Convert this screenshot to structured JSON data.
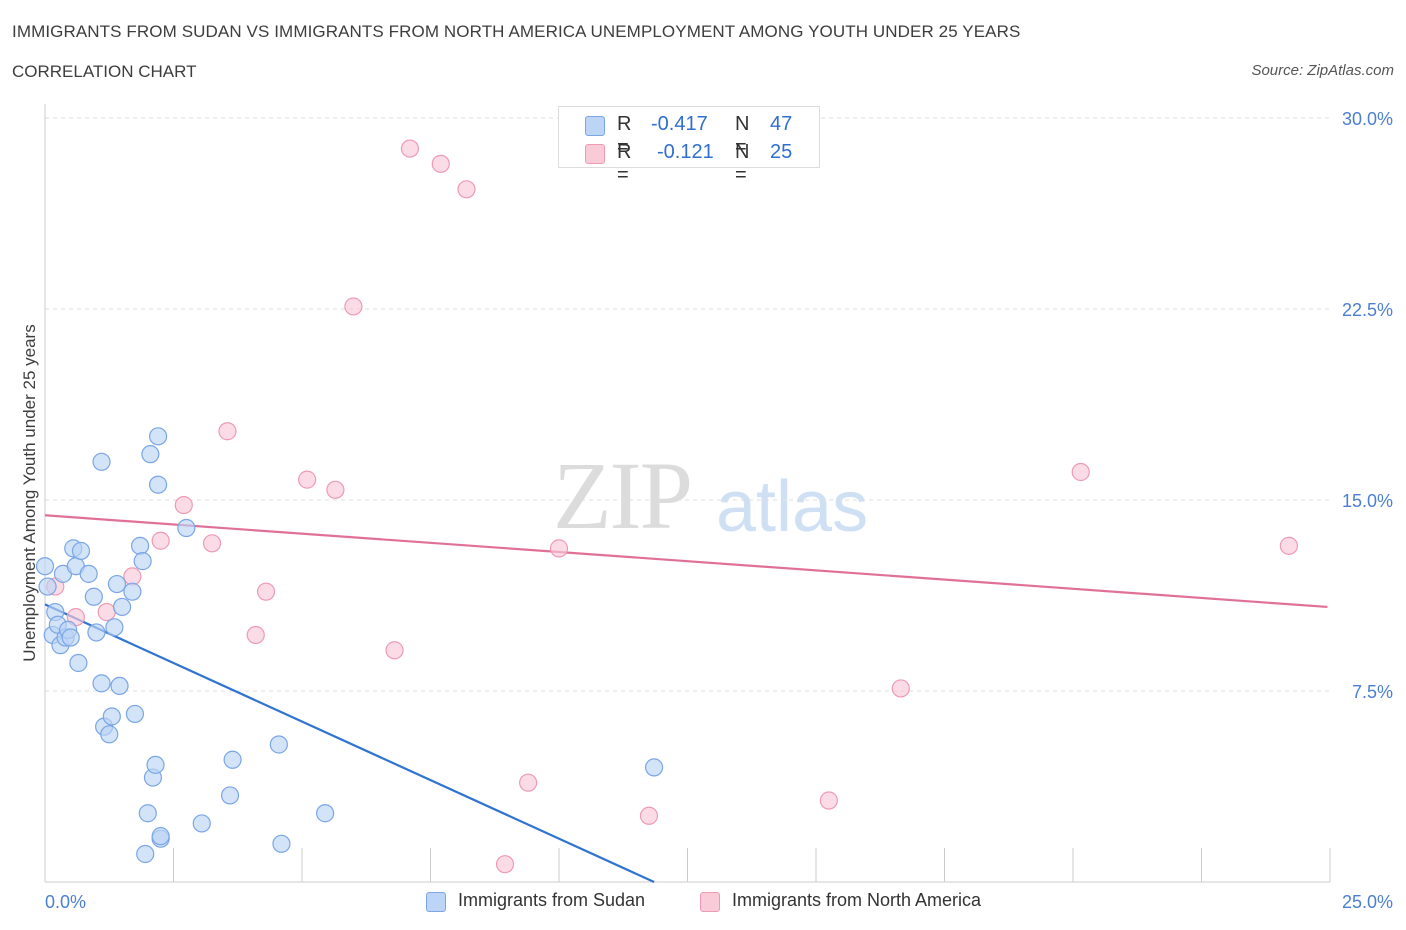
{
  "header": {
    "title": "IMMIGRANTS FROM SUDAN VS IMMIGRANTS FROM NORTH AMERICA UNEMPLOYMENT AMONG YOUTH UNDER 25 YEARS",
    "subtitle": "CORRELATION CHART",
    "source": "Source: ZipAtlas.com"
  },
  "watermark": {
    "zip": "ZIP",
    "atlas": "atlas"
  },
  "legend": {
    "sudan": {
      "r_label": "R =",
      "r_value": "-0.417",
      "n_label": "N =",
      "n_value": "47"
    },
    "north_america": {
      "r_label": "R =",
      "r_value": "-0.121",
      "n_label": "N =",
      "n_value": "25"
    }
  },
  "colors": {
    "sudan_fill": "#bcd4f5",
    "sudan_stroke": "#7aa6e6",
    "sudan_line": "#2f74d0",
    "na_fill": "#f9cad8",
    "na_stroke": "#ee9ab5",
    "na_line": "#e07098",
    "grid": "#dddddd",
    "tick_text": "#4a7fd4"
  },
  "chart_data": {
    "type": "scatter",
    "title": "IMMIGRANTS FROM SUDAN VS IMMIGRANTS FROM NORTH AMERICA UNEMPLOYMENT AMONG YOUTH UNDER 25 YEARS",
    "xlabel": "",
    "ylabel": "Unemployment Among Youth under 25 years",
    "xlim": [
      0,
      25
    ],
    "ylim": [
      0,
      30
    ],
    "x_tick_labels": [
      "0.0%",
      "25.0%"
    ],
    "y_ticks": [
      7.5,
      15,
      22.5,
      30
    ],
    "y_tick_labels": [
      "7.5%",
      "15.0%",
      "22.5%",
      "30.0%"
    ],
    "series": [
      {
        "name": "Immigrants from Sudan",
        "points": [
          [
            0.0,
            12.4
          ],
          [
            0.15,
            9.7
          ],
          [
            0.2,
            10.6
          ],
          [
            0.25,
            10.1
          ],
          [
            0.3,
            9.3
          ],
          [
            0.35,
            12.1
          ],
          [
            0.4,
            9.6
          ],
          [
            0.45,
            9.9
          ],
          [
            0.5,
            9.6
          ],
          [
            0.55,
            13.1
          ],
          [
            0.6,
            12.4
          ],
          [
            0.65,
            8.6
          ],
          [
            0.7,
            13.0
          ],
          [
            0.85,
            12.1
          ],
          [
            0.95,
            11.2
          ],
          [
            1.0,
            9.8
          ],
          [
            1.1,
            7.8
          ],
          [
            1.15,
            6.1
          ],
          [
            1.25,
            5.8
          ],
          [
            1.3,
            6.5
          ],
          [
            1.35,
            10.0
          ],
          [
            1.4,
            11.7
          ],
          [
            1.45,
            7.7
          ],
          [
            1.5,
            10.8
          ],
          [
            1.7,
            11.4
          ],
          [
            1.75,
            6.6
          ],
          [
            1.85,
            13.2
          ],
          [
            1.9,
            12.6
          ],
          [
            1.95,
            1.1
          ],
          [
            2.0,
            2.7
          ],
          [
            2.05,
            16.8
          ],
          [
            2.1,
            4.1
          ],
          [
            2.15,
            4.6
          ],
          [
            2.2,
            17.5
          ],
          [
            1.1,
            16.5
          ],
          [
            2.25,
            1.7
          ],
          [
            2.25,
            1.8
          ],
          [
            2.2,
            15.6
          ],
          [
            2.75,
            13.9
          ],
          [
            3.05,
            2.3
          ],
          [
            3.6,
            3.4
          ],
          [
            3.65,
            4.8
          ],
          [
            4.55,
            5.4
          ],
          [
            4.6,
            1.5
          ],
          [
            5.45,
            2.7
          ],
          [
            11.85,
            4.5
          ],
          [
            0.05,
            11.6
          ]
        ]
      },
      {
        "name": "Immigrants from North America",
        "points": [
          [
            0.2,
            11.6
          ],
          [
            0.6,
            10.4
          ],
          [
            1.2,
            10.6
          ],
          [
            1.7,
            12.0
          ],
          [
            2.25,
            13.4
          ],
          [
            2.7,
            14.8
          ],
          [
            3.25,
            13.3
          ],
          [
            3.55,
            17.7
          ],
          [
            4.1,
            9.7
          ],
          [
            4.3,
            11.4
          ],
          [
            5.1,
            15.8
          ],
          [
            5.65,
            15.4
          ],
          [
            6.0,
            22.6
          ],
          [
            6.8,
            9.1
          ],
          [
            7.1,
            28.8
          ],
          [
            7.7,
            28.2
          ],
          [
            8.2,
            27.2
          ],
          [
            8.95,
            0.7
          ],
          [
            9.4,
            3.9
          ],
          [
            10.0,
            13.1
          ],
          [
            11.75,
            2.6
          ],
          [
            15.25,
            3.2
          ],
          [
            16.65,
            7.6
          ],
          [
            20.15,
            16.1
          ],
          [
            24.2,
            13.2
          ]
        ]
      }
    ],
    "trendlines": [
      {
        "series": "Immigrants from Sudan",
        "from": [
          0,
          10.9
        ],
        "to": [
          11.85,
          0
        ]
      },
      {
        "series": "Immigrants from North America",
        "from": [
          0,
          14.4
        ],
        "to": [
          24.95,
          10.8
        ]
      }
    ]
  },
  "bottom_legend": {
    "sudan_label": "Immigrants from Sudan",
    "na_label": "Immigrants from North America"
  }
}
